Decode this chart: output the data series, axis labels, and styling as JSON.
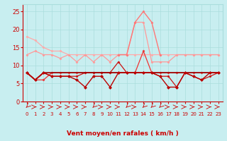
{
  "x": [
    0,
    1,
    2,
    3,
    4,
    5,
    6,
    7,
    8,
    9,
    10,
    11,
    12,
    13,
    14,
    15,
    16,
    17,
    18,
    19,
    20,
    21,
    22,
    23
  ],
  "lines": [
    {
      "y": [
        18,
        17,
        15,
        14,
        14,
        13,
        13,
        13,
        13,
        13,
        13,
        13,
        13,
        13,
        13,
        13,
        13,
        13,
        13,
        13,
        13,
        13,
        13,
        13
      ],
      "color": "#ffaaaa",
      "marker": "D",
      "ms": 1.5,
      "lw": 0.9,
      "zorder": 2
    },
    {
      "y": [
        13,
        14,
        13,
        13,
        12,
        13,
        11,
        13,
        11,
        13,
        11,
        13,
        13,
        22,
        22,
        11,
        11,
        11,
        13,
        13,
        13,
        13,
        13,
        13
      ],
      "color": "#ff9999",
      "marker": "D",
      "ms": 1.5,
      "lw": 0.9,
      "zorder": 2
    },
    {
      "y": [
        null,
        null,
        null,
        null,
        null,
        null,
        null,
        null,
        null,
        null,
        null,
        13,
        13,
        22,
        25,
        22,
        13,
        null,
        null,
        null,
        null,
        null,
        null,
        null
      ],
      "color": "#ff7777",
      "marker": "D",
      "ms": 1.5,
      "lw": 1.0,
      "zorder": 3
    },
    {
      "y": [
        8,
        6,
        6,
        8,
        8,
        8,
        8,
        8,
        8,
        8,
        8,
        8,
        8,
        8,
        14,
        8,
        8,
        8,
        8,
        8,
        8,
        8,
        8,
        8
      ],
      "color": "#ee3333",
      "marker": "D",
      "ms": 1.5,
      "lw": 0.9,
      "zorder": 4
    },
    {
      "y": [
        8,
        6,
        8,
        7,
        7,
        7,
        7,
        8,
        8,
        8,
        8,
        11,
        8,
        8,
        8,
        8,
        7,
        7,
        4,
        8,
        7,
        6,
        7,
        8
      ],
      "color": "#cc1111",
      "marker": "D",
      "ms": 1.5,
      "lw": 0.9,
      "zorder": 4
    },
    {
      "y": [
        8,
        6,
        8,
        7,
        7,
        7,
        6,
        4,
        7,
        7,
        4,
        8,
        8,
        8,
        8,
        8,
        7,
        4,
        4,
        8,
        7,
        6,
        8,
        8
      ],
      "color": "#bb0000",
      "marker": "D",
      "ms": 2.0,
      "lw": 1.0,
      "zorder": 5
    },
    {
      "y": [
        8,
        6,
        8,
        8,
        8,
        8,
        8,
        8,
        8,
        8,
        8,
        8,
        8,
        8,
        8,
        8,
        8,
        8,
        8,
        8,
        8,
        8,
        8,
        8
      ],
      "color": "#990000",
      "marker": null,
      "ms": 0,
      "lw": 1.2,
      "zorder": 4
    }
  ],
  "arrows": [
    "down-left",
    "right",
    "right",
    "right",
    "right",
    "right",
    "right",
    "right",
    "down-left",
    "right",
    "right",
    "right",
    "down-left",
    "right",
    "down-left",
    "down-left",
    "down-left",
    "right",
    "right",
    "right",
    "right",
    "right",
    "right",
    "right"
  ],
  "xlabel": "Vent moyen/en rafales ( km/h )",
  "xlim": [
    -0.5,
    23.5
  ],
  "ylim": [
    0,
    27
  ],
  "yticks": [
    0,
    5,
    10,
    15,
    20,
    25
  ],
  "xticks": [
    0,
    1,
    2,
    3,
    4,
    5,
    6,
    7,
    8,
    9,
    10,
    11,
    12,
    13,
    14,
    15,
    16,
    17,
    18,
    19,
    20,
    21,
    22,
    23
  ],
  "bg_color": "#c8eef0",
  "grid_color": "#aadddd",
  "tick_color": "#cc0000",
  "label_color": "#cc0000"
}
